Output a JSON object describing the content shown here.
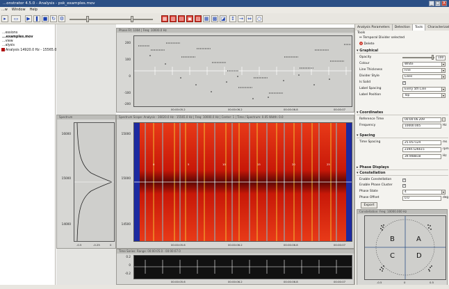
{
  "window": {
    "title": "...onstrator 4.5.0 - Analysis - psk_examples.mov",
    "controls": [
      "_",
      "□",
      "X"
    ]
  },
  "menu": [
    "...w",
    "Window",
    "Help"
  ],
  "tree": {
    "items": [
      "...essions",
      "...examples.mov",
      "...view",
      "...alysis",
      "Analysis 14920.0 Hz - 15565.0 Hz..."
    ]
  },
  "phase_panel": {
    "title": "Phase Fit: 1004 | Freq: 10000.0 Hz",
    "y_ticks": [
      "200",
      "100",
      "0",
      "-100",
      "-200"
    ],
    "x_ticks": [
      "00:00:05.2",
      "00:00:06.2",
      "00:00:06.8",
      "00:00:07"
    ]
  },
  "spectrum_panel": {
    "title": "Spectrum",
    "y_ticks": [
      "16000",
      "15000",
      "14000"
    ],
    "x_ticks": [
      "-0.5",
      "-0.25",
      "0"
    ]
  },
  "spectrogram_panel": {
    "title": "Spectrum Scope: Analysis - 16020.0 Hz - 15565.0 Hz | Freq: 10000.0 Hz | Center: 1 | Time / Spectrum: 0.05 Width: 0.0",
    "y_ticks": [
      "15000",
      "15000",
      "14500"
    ],
    "x_ticks": [
      "00:00:05.6",
      "00:00:06.2",
      "00:00:06.8",
      "00:00:07"
    ],
    "markers": [
      "0",
      "5",
      "10",
      "15",
      "20",
      "25"
    ]
  },
  "time_panel": {
    "title": "Time Series: Range: 00:00:05.0 - 00:00:07.0",
    "y_ticks": [
      "0.2",
      "0",
      "-0.2"
    ],
    "x_ticks": [
      "00:00:05.6",
      "00:00:06.2",
      "00:00:06.8",
      "00:00:07"
    ]
  },
  "right": {
    "tabs": [
      "Analysis Parameters",
      "Detection",
      "Tools",
      "Characterization"
    ],
    "tools_label": "Tools",
    "selection_text": "Temporal Divider selected",
    "delete_label": "Delete",
    "sections": {
      "graphical": "Graphical",
      "coordinates": "Coordinates",
      "spacing": "Spacing",
      "phase_displays": "Phase Displays",
      "constellation": "Constellation"
    },
    "graphical": {
      "opacity_label": "Opacity",
      "opacity_value": "100",
      "colour_label": "Colour",
      "colour_value": "White",
      "thickness_label": "Line Thickness",
      "thickness_value": "Fine",
      "style_label": "Divider Style",
      "style_value": "Lines",
      "solid_label": "Is Solid",
      "spacing_label": "Label Spacing",
      "spacing_value": "Every 5th Line",
      "position_label": "Label Position",
      "position_value": "Top"
    },
    "coordinates": {
      "ref_time_label": "Reference Time",
      "ref_time_value": "00:00:06.209",
      "freq_label": "Frequency",
      "freq_value": "10000.005",
      "freq_unit": "Hz"
    },
    "spacing": {
      "time_label": "Time Spacing",
      "v1": "25.057124",
      "u1": "ms",
      "v2": "2394.526615",
      "u2": "rpm",
      "v3": "39.908818",
      "u3": "Hz"
    },
    "constellation": {
      "enable_label": "Enable Constellation",
      "cluster_label": "Enable Phase Cluster",
      "states_label": "Phase State",
      "states_value": "4",
      "offset_label": "Phase Offset",
      "offset_value": "0.0",
      "offset_unit": "deg",
      "export_label": "Export",
      "plot_title": "Constellation: Freq: 10000.000 Hz",
      "quadrants": [
        "B",
        "A",
        "C",
        "D"
      ],
      "x_ticks": [
        "-0.5",
        "0",
        "0.5"
      ]
    }
  },
  "colors": {
    "accent": "#2b4f85",
    "spectrogram_bg": "#e02a14",
    "spectrogram_edge": "#1c2aa0"
  }
}
